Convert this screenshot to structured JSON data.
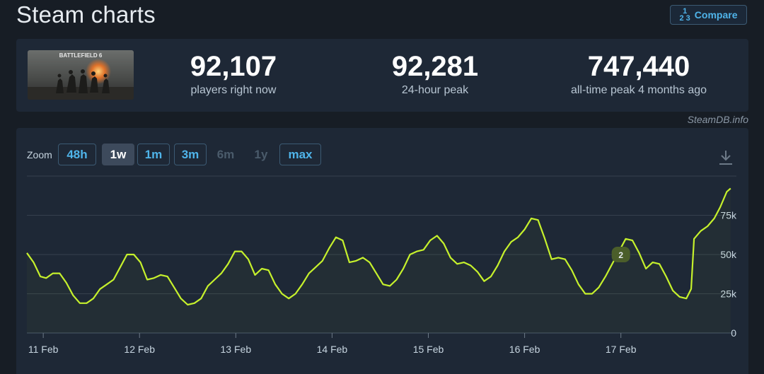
{
  "header": {
    "title": "Steam charts",
    "compare_label": "Compare",
    "compare_icon_top": "1",
    "compare_icon_bottom": "2 3"
  },
  "game": {
    "thumbnail_text": "BATTLEFIELD 6"
  },
  "stats": [
    {
      "value": "92,107",
      "label": "players right now"
    },
    {
      "value": "92,281",
      "label": "24-hour peak"
    },
    {
      "value": "747,440",
      "label": "all-time peak 4 months ago"
    }
  ],
  "watermark": "SteamDB.info",
  "zoom": {
    "label": "Zoom",
    "options": [
      {
        "label": "48h",
        "state": "enabled"
      },
      {
        "label": "1w",
        "state": "active"
      },
      {
        "label": "1m",
        "state": "enabled"
      },
      {
        "label": "3m",
        "state": "enabled"
      },
      {
        "label": "6m",
        "state": "disabled"
      },
      {
        "label": "1y",
        "state": "disabled"
      },
      {
        "label": "max",
        "state": "enabled"
      }
    ]
  },
  "colors": {
    "line": "#c6f12c",
    "accent": "#4fb4ea",
    "marker": "#4b5e2a"
  },
  "chart_data": {
    "type": "line",
    "x_tick_labels": [
      "11 Feb",
      "12 Feb",
      "13 Feb",
      "14 Feb",
      "15 Feb",
      "16 Feb",
      "17 Feb"
    ],
    "y_tick_labels": [
      "0",
      "25k",
      "50k",
      "75k"
    ],
    "ylim": [
      0,
      100000
    ],
    "grid": true,
    "annotation": {
      "label": "2",
      "day": 17.0,
      "value": 50000
    },
    "series": [
      {
        "points": [
          [
            10.83,
            51000
          ],
          [
            10.9,
            45000
          ],
          [
            10.97,
            36000
          ],
          [
            11.03,
            35000
          ],
          [
            11.1,
            38000
          ],
          [
            11.17,
            38000
          ],
          [
            11.24,
            32000
          ],
          [
            11.31,
            24000
          ],
          [
            11.38,
            19000
          ],
          [
            11.45,
            19000
          ],
          [
            11.52,
            22000
          ],
          [
            11.59,
            28000
          ],
          [
            11.66,
            31000
          ],
          [
            11.73,
            34000
          ],
          [
            11.8,
            42000
          ],
          [
            11.87,
            50000
          ],
          [
            11.94,
            50000
          ],
          [
            12.01,
            45000
          ],
          [
            12.08,
            34000
          ],
          [
            12.15,
            35000
          ],
          [
            12.22,
            37000
          ],
          [
            12.29,
            36000
          ],
          [
            12.36,
            29000
          ],
          [
            12.43,
            22000
          ],
          [
            12.5,
            18000
          ],
          [
            12.57,
            19000
          ],
          [
            12.64,
            22000
          ],
          [
            12.71,
            30000
          ],
          [
            12.78,
            34000
          ],
          [
            12.85,
            38000
          ],
          [
            12.92,
            44000
          ],
          [
            12.99,
            52000
          ],
          [
            13.06,
            52000
          ],
          [
            13.13,
            47000
          ],
          [
            13.2,
            37000
          ],
          [
            13.27,
            41000
          ],
          [
            13.34,
            40000
          ],
          [
            13.41,
            31000
          ],
          [
            13.48,
            25000
          ],
          [
            13.55,
            22000
          ],
          [
            13.62,
            25000
          ],
          [
            13.69,
            31000
          ],
          [
            13.76,
            38000
          ],
          [
            13.83,
            42000
          ],
          [
            13.9,
            46000
          ],
          [
            13.97,
            54000
          ],
          [
            14.04,
            61000
          ],
          [
            14.11,
            59000
          ],
          [
            14.18,
            45000
          ],
          [
            14.25,
            46000
          ],
          [
            14.32,
            48000
          ],
          [
            14.39,
            45000
          ],
          [
            14.46,
            38000
          ],
          [
            14.53,
            31000
          ],
          [
            14.6,
            30000
          ],
          [
            14.67,
            34000
          ],
          [
            14.74,
            41000
          ],
          [
            14.81,
            50000
          ],
          [
            14.88,
            52000
          ],
          [
            14.95,
            53000
          ],
          [
            15.02,
            59000
          ],
          [
            15.09,
            62000
          ],
          [
            15.16,
            57000
          ],
          [
            15.23,
            48000
          ],
          [
            15.3,
            44000
          ],
          [
            15.37,
            45000
          ],
          [
            15.44,
            43000
          ],
          [
            15.51,
            39000
          ],
          [
            15.58,
            33000
          ],
          [
            15.65,
            36000
          ],
          [
            15.72,
            43000
          ],
          [
            15.79,
            52000
          ],
          [
            15.86,
            58000
          ],
          [
            15.93,
            61000
          ],
          [
            16.0,
            66000
          ],
          [
            16.07,
            73000
          ],
          [
            16.14,
            72000
          ],
          [
            16.21,
            60000
          ],
          [
            16.28,
            47000
          ],
          [
            16.35,
            48000
          ],
          [
            16.42,
            47000
          ],
          [
            16.49,
            40000
          ],
          [
            16.56,
            31000
          ],
          [
            16.63,
            25000
          ],
          [
            16.7,
            25000
          ],
          [
            16.77,
            29000
          ],
          [
            16.84,
            36000
          ],
          [
            16.91,
            44000
          ],
          [
            16.98,
            52000
          ],
          [
            17.05,
            60000
          ],
          [
            17.12,
            59000
          ],
          [
            17.19,
            51000
          ],
          [
            17.26,
            41000
          ],
          [
            17.33,
            45000
          ],
          [
            17.4,
            44000
          ],
          [
            17.47,
            36000
          ],
          [
            17.54,
            27000
          ],
          [
            17.61,
            23000
          ],
          [
            17.68,
            22000
          ],
          [
            17.73,
            28000
          ],
          [
            17.76,
            60000
          ],
          [
            17.83,
            65000
          ],
          [
            17.9,
            68000
          ],
          [
            17.97,
            73000
          ],
          [
            18.03,
            80000
          ],
          [
            18.1,
            90000
          ],
          [
            18.14,
            92107
          ]
        ]
      }
    ]
  }
}
